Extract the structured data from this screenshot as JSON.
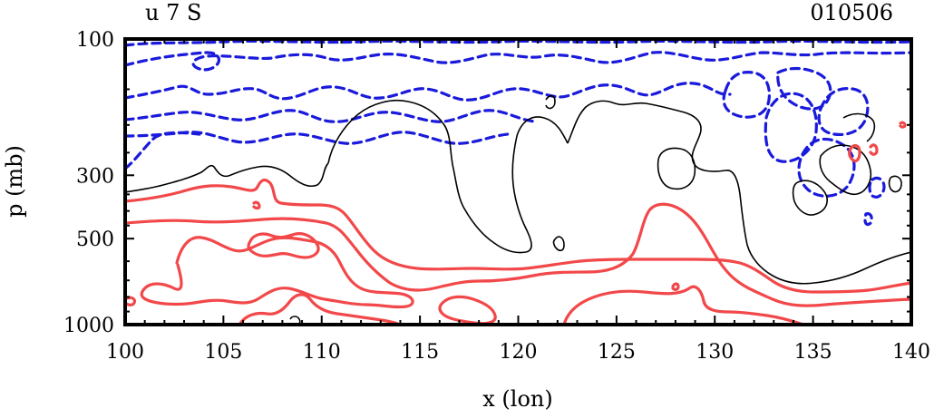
{
  "chart_data": {
    "type": "contour",
    "title_left": "u 7 S",
    "title_right": "010506",
    "xlabel": "x (lon)",
    "ylabel": "p (mb)",
    "xlim": [
      100,
      140
    ],
    "ylim": [
      1000,
      100
    ],
    "x_ticks": [
      "100",
      "105",
      "110",
      "115",
      "120",
      "125",
      "130",
      "135",
      "140"
    ],
    "y_ticks": [
      {
        "value": 100,
        "label": "100"
      },
      {
        "value": 300,
        "label": "300"
      },
      {
        "value": 500,
        "label": "500"
      },
      {
        "value": 1000,
        "label": "1000"
      }
    ],
    "colors": {
      "positive": "#f2484a",
      "negative": "#1a1adc",
      "zero": "#000000"
    }
  }
}
